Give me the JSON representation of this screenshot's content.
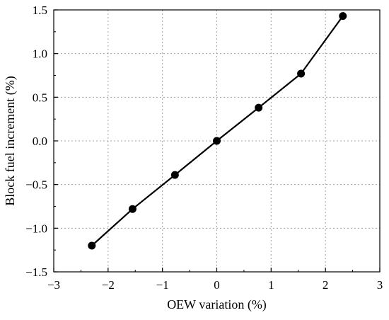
{
  "chart_data": {
    "type": "line",
    "title": "",
    "xlabel": "OEW variation (%)",
    "ylabel": "Block fuel increment (%)",
    "xlim": [
      -3,
      3
    ],
    "ylim": [
      -1.5,
      1.5
    ],
    "x_ticks": [
      -3,
      -2,
      -1,
      0,
      1,
      2,
      3
    ],
    "x_tick_labels": [
      "−3",
      "−2",
      "−1",
      "0",
      "1",
      "2",
      "3"
    ],
    "y_ticks": [
      -1.5,
      -1.0,
      -0.5,
      0.0,
      0.5,
      1.0,
      1.5
    ],
    "y_tick_labels": [
      "−1.5",
      "−1.0",
      "−0.5",
      "0.0",
      "0.5",
      "1.0",
      "1.5"
    ],
    "grid": true,
    "grid_style": "dotted",
    "legend": "none",
    "colors": {
      "series": "#000000",
      "grid": "#a0a0a0",
      "axes": "#000000"
    },
    "series": [
      {
        "marker": "circle",
        "x": [
          -2.3,
          -1.55,
          -0.77,
          0.0,
          0.77,
          1.55,
          2.32
        ],
        "y": [
          -1.2,
          -0.78,
          -0.39,
          0.0,
          0.38,
          0.77,
          1.43
        ]
      }
    ]
  }
}
